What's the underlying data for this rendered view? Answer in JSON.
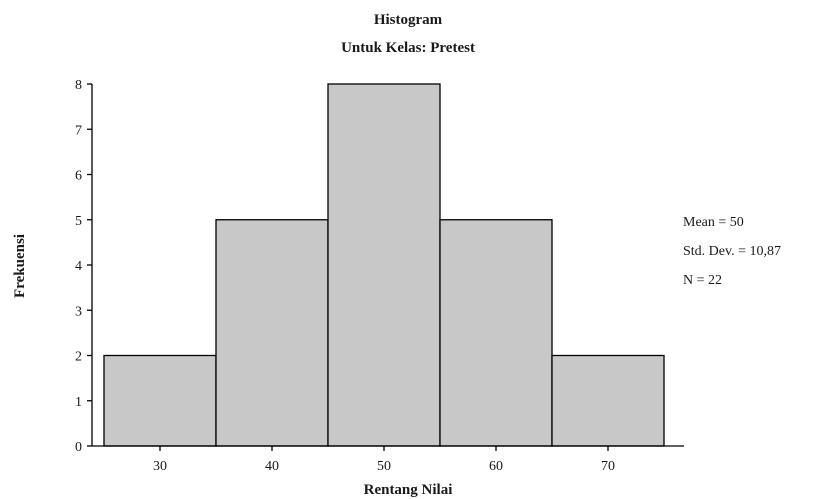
{
  "chart_data": {
    "type": "bar",
    "title": "Histogram",
    "subtitle": "Untuk Kelas: Pretest",
    "xlabel": "Rentang Nilai",
    "ylabel": "Frekuensi",
    "categories": [
      "30",
      "40",
      "50",
      "60",
      "70"
    ],
    "values": [
      2,
      5,
      8,
      5,
      2
    ],
    "ylim": [
      0,
      8
    ],
    "yticks": [
      "0",
      "1",
      "2",
      "3",
      "4",
      "5",
      "6",
      "7",
      "8"
    ],
    "grid": false,
    "bar_color": "#c8c8c8",
    "stats": [
      "Mean = 50",
      "Std. Dev. = 10,87",
      "N = 22"
    ]
  }
}
